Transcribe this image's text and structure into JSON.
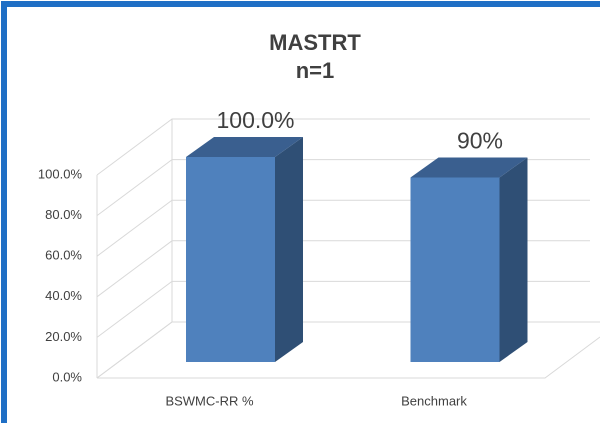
{
  "chart_data": {
    "type": "bar3d",
    "title": "MASTRT",
    "subtitle": "n=1",
    "categories": [
      "BSWMC-RR %",
      "Benchmark"
    ],
    "values": [
      100,
      90
    ],
    "value_labels": [
      "100.0%",
      "90%"
    ],
    "color": "#4f81bd",
    "ylim": [
      0,
      100
    ],
    "yticks": [
      {
        "value": 0,
        "label": "0.0%"
      },
      {
        "value": 20,
        "label": "20.0%"
      },
      {
        "value": 40,
        "label": "40.0%"
      },
      {
        "value": 60,
        "label": "60.0%"
      },
      {
        "value": 80,
        "label": "80.0%"
      },
      {
        "value": 100,
        "label": "100.0%"
      }
    ],
    "grid": true
  }
}
